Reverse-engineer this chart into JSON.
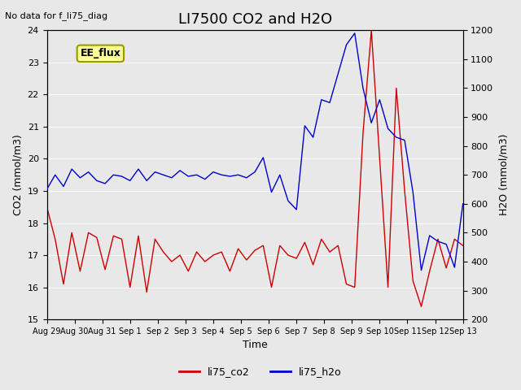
{
  "title": "LI7500 CO2 and H2O",
  "top_left_text": "No data for f_li75_diag",
  "annotation_box": "EE_flux",
  "xlabel": "Time",
  "ylabel_left": "CO2 (mmol/m3)",
  "ylabel_right": "H2O (mmol/m3)",
  "ylim_left": [
    15.0,
    24.0
  ],
  "ylim_right": [
    200,
    1200
  ],
  "x_tick_labels": [
    "Aug 29",
    "Aug 30",
    "Aug 31",
    "Sep 1",
    "Sep 2",
    "Sep 3",
    "Sep 4",
    "Sep 5",
    "Sep 6",
    "Sep 7",
    "Sep 8",
    "Sep 9",
    "Sep 10",
    "Sep 11",
    "Sep 12",
    "Sep 13"
  ],
  "legend_entries": [
    "li75_co2",
    "li75_h2o"
  ],
  "line_colors": [
    "#cc0000",
    "#0000cc"
  ],
  "background_color": "#e8e8e8",
  "plot_bg_color": "#e8e8e8",
  "grid_color": "#ffffff",
  "title_fontsize": 13,
  "label_fontsize": 9,
  "tick_fontsize": 8,
  "co2_x": [
    0,
    0.3,
    0.6,
    0.9,
    1.2,
    1.5,
    1.8,
    2.1,
    2.4,
    2.7,
    3.0,
    3.3,
    3.6,
    3.9,
    4.2,
    4.5,
    4.8,
    5.1,
    5.4,
    5.7,
    6.0,
    6.3,
    6.6,
    6.9,
    7.2,
    7.5,
    7.8,
    8.1,
    8.4,
    8.7,
    9.0,
    9.3,
    9.6,
    9.9,
    10.2,
    10.5,
    10.8,
    11.1,
    11.4,
    11.7,
    12.0,
    12.3,
    12.6,
    12.9,
    13.2,
    13.5,
    13.8,
    14.1,
    14.4,
    14.7,
    15.0
  ],
  "co2_y": [
    18.5,
    17.5,
    16.1,
    17.7,
    16.5,
    17.7,
    17.55,
    16.55,
    17.6,
    17.5,
    16.0,
    17.6,
    15.85,
    17.5,
    17.1,
    16.8,
    17.0,
    16.5,
    17.1,
    16.8,
    17.0,
    17.1,
    16.5,
    17.2,
    16.85,
    17.15,
    17.3,
    16.0,
    17.3,
    17.0,
    16.9,
    17.4,
    16.7,
    17.5,
    17.1,
    17.3,
    16.1,
    16.0,
    20.8,
    24.0,
    20.0,
    16.0,
    22.2,
    19.0,
    16.2,
    15.4,
    16.5,
    17.5,
    16.6,
    17.5,
    17.3
  ],
  "h2o_x": [
    0,
    0.3,
    0.6,
    0.9,
    1.2,
    1.5,
    1.8,
    2.1,
    2.4,
    2.7,
    3.0,
    3.3,
    3.6,
    3.9,
    4.2,
    4.5,
    4.8,
    5.1,
    5.4,
    5.7,
    6.0,
    6.3,
    6.6,
    6.9,
    7.2,
    7.5,
    7.8,
    8.1,
    8.4,
    8.7,
    9.0,
    9.3,
    9.6,
    9.9,
    10.2,
    10.5,
    10.8,
    11.1,
    11.4,
    11.7,
    12.0,
    12.3,
    12.6,
    12.9,
    13.2,
    13.5,
    13.8,
    14.1,
    14.4,
    14.7,
    15.0
  ],
  "h2o_y": [
    650,
    700,
    660,
    720,
    690,
    710,
    680,
    670,
    700,
    695,
    680,
    720,
    680,
    710,
    700,
    690,
    715,
    695,
    700,
    685,
    710,
    700,
    695,
    700,
    690,
    710,
    760,
    640,
    700,
    610,
    580,
    870,
    830,
    960,
    950,
    1050,
    1150,
    1190,
    1000,
    880,
    960,
    860,
    830,
    820,
    640,
    370,
    490,
    470,
    460,
    380,
    600
  ]
}
